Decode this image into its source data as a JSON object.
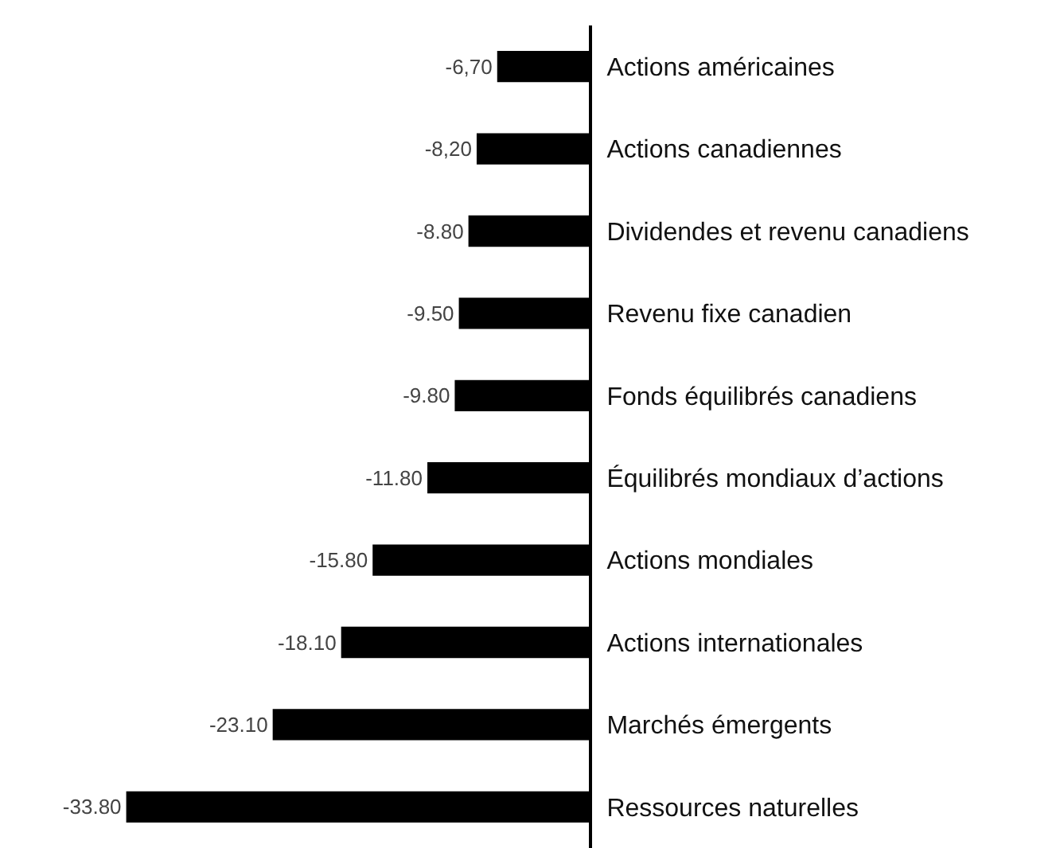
{
  "chart_data": {
    "type": "bar",
    "orientation": "horizontal",
    "categories": [
      "Actions américaines",
      "Actions canadiennes",
      "Dividendes et revenu canadiens",
      "Revenu fixe canadien",
      "Fonds équilibrés canadiens",
      "Équilibrés mondiaux d’actions",
      "Actions mondiales",
      "Actions internationales",
      "Marchés émergents",
      "Ressources naturelles"
    ],
    "values": [
      -6.7,
      -8.2,
      -8.8,
      -9.5,
      -9.8,
      -11.8,
      -15.8,
      -18.1,
      -23.1,
      -33.8
    ],
    "value_labels": [
      "-6,70",
      "-8,20",
      "-8.80",
      "-9.50",
      "-9.80",
      "-11.80",
      "-15.80",
      "-18.10",
      "-23.10",
      "-33.80"
    ],
    "color": "#000000",
    "tick_labels": "y",
    "grid": false,
    "legend": false
  }
}
